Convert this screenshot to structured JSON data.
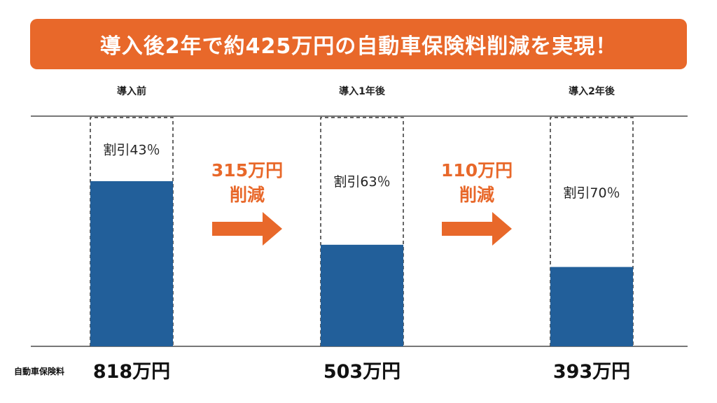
{
  "title": "導入後2年で約425万円の自動車保険料削減を実現！",
  "row_label": "自動車保険料",
  "colors": {
    "accent": "#e8682a",
    "bar": "#225f9a",
    "axis": "#777777"
  },
  "chart_data": {
    "type": "bar",
    "categories": [
      "導入前",
      "導入1年後",
      "導入2年後"
    ],
    "values": [
      818,
      503,
      393
    ],
    "value_labels": [
      "818万円",
      "503万円",
      "393万円"
    ],
    "discount_labels": [
      "割引43％",
      "割引63％",
      "割引70％"
    ],
    "reductions": [
      {
        "amount": "315万円",
        "word": "削減"
      },
      {
        "amount": "110万円",
        "word": "削減"
      }
    ],
    "ylim": [
      0,
      1140
    ],
    "grid": false
  }
}
